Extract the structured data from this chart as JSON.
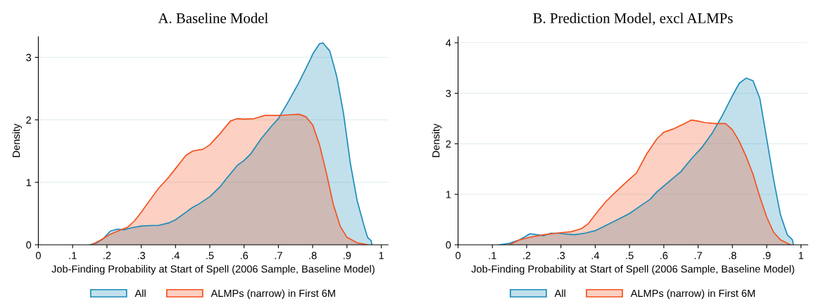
{
  "chart_data": [
    {
      "type": "area",
      "title": "A. Baseline Model",
      "xlabel": "Job-Finding Probability at Start of Spell (2006 Sample, Baseline Model)",
      "ylabel": "Density",
      "xlim": [
        0,
        1.02
      ],
      "ylim": [
        0,
        3.33
      ],
      "xticks": [
        0,
        {
          "value": 0.1,
          "label": ".1"
        },
        {
          "value": 0.2,
          "label": ".2"
        },
        {
          "value": 0.3,
          "label": ".3"
        },
        {
          "value": 0.4,
          "label": ".4"
        },
        {
          "value": 0.5,
          "label": ".5"
        },
        {
          "value": 0.6,
          "label": ".6"
        },
        {
          "value": 0.7,
          "label": ".7"
        },
        {
          "value": 0.8,
          "label": ".8"
        },
        {
          "value": 0.9,
          "label": ".9"
        },
        1
      ],
      "yticks": [
        0,
        1,
        2,
        3
      ],
      "grid": "y",
      "legend": "bottom",
      "series": [
        {
          "name": "All",
          "color": "#1a8bb8",
          "x": [
            0.15,
            0.17,
            0.19,
            0.21,
            0.23,
            0.25,
            0.27,
            0.3,
            0.33,
            0.35,
            0.38,
            0.4,
            0.43,
            0.45,
            0.47,
            0.5,
            0.53,
            0.55,
            0.58,
            0.6,
            0.62,
            0.65,
            0.68,
            0.7,
            0.73,
            0.76,
            0.79,
            0.8,
            0.82,
            0.83,
            0.85,
            0.87,
            0.89,
            0.91,
            0.93,
            0.95,
            0.96,
            0.97,
            0.973
          ],
          "values": [
            0,
            0.03,
            0.1,
            0.22,
            0.25,
            0.24,
            0.27,
            0.3,
            0.31,
            0.31,
            0.35,
            0.4,
            0.52,
            0.6,
            0.66,
            0.77,
            0.93,
            1.07,
            1.27,
            1.35,
            1.46,
            1.7,
            1.9,
            2.02,
            2.3,
            2.6,
            2.93,
            3.05,
            3.22,
            3.23,
            3.1,
            2.7,
            2.1,
            1.3,
            0.7,
            0.3,
            0.12,
            0.07,
            0
          ]
        },
        {
          "name": "ALMPs (narrow) in First 6M",
          "color": "#f4511e",
          "x": [
            0.155,
            0.18,
            0.21,
            0.24,
            0.26,
            0.28,
            0.3,
            0.33,
            0.35,
            0.38,
            0.4,
            0.43,
            0.45,
            0.48,
            0.5,
            0.53,
            0.56,
            0.58,
            0.6,
            0.63,
            0.66,
            0.7,
            0.73,
            0.76,
            0.78,
            0.8,
            0.82,
            0.84,
            0.86,
            0.88,
            0.9,
            0.93,
            0.96
          ],
          "values": [
            0,
            0.07,
            0.17,
            0.24,
            0.28,
            0.38,
            0.52,
            0.75,
            0.9,
            1.08,
            1.22,
            1.43,
            1.5,
            1.53,
            1.6,
            1.78,
            1.98,
            2.02,
            2.01,
            2.02,
            2.07,
            2.07,
            2.08,
            2.09,
            2.05,
            1.92,
            1.6,
            1.15,
            0.65,
            0.3,
            0.12,
            0.03,
            0
          ]
        }
      ]
    },
    {
      "type": "area",
      "title": "B. Prediction Model, excl ALMPs",
      "xlabel": "Job-Finding Probability at Start of Spell (2006 Sample, Baseline Model)",
      "ylabel": "Density",
      "xlim": [
        0,
        1.02
      ],
      "ylim": [
        0,
        4.12
      ],
      "xticks": [
        0,
        {
          "value": 0.1,
          "label": ".1"
        },
        {
          "value": 0.2,
          "label": ".2"
        },
        {
          "value": 0.3,
          "label": ".3"
        },
        {
          "value": 0.4,
          "label": ".4"
        },
        {
          "value": 0.5,
          "label": ".5"
        },
        {
          "value": 0.6,
          "label": ".6"
        },
        {
          "value": 0.7,
          "label": ".7"
        },
        {
          "value": 0.8,
          "label": ".8"
        },
        {
          "value": 0.9,
          "label": ".9"
        },
        1
      ],
      "yticks": [
        0,
        1,
        2,
        3,
        4
      ],
      "grid": "y",
      "legend": "bottom",
      "series": [
        {
          "name": "All",
          "color": "#1a8bb8",
          "x": [
            0.12,
            0.15,
            0.18,
            0.21,
            0.23,
            0.25,
            0.27,
            0.29,
            0.32,
            0.34,
            0.37,
            0.4,
            0.43,
            0.46,
            0.5,
            0.53,
            0.56,
            0.58,
            0.62,
            0.65,
            0.68,
            0.71,
            0.74,
            0.77,
            0.8,
            0.82,
            0.84,
            0.86,
            0.88,
            0.9,
            0.92,
            0.94,
            0.96,
            0.975,
            0.978
          ],
          "values": [
            0,
            0.03,
            0.1,
            0.22,
            0.2,
            0.18,
            0.23,
            0.23,
            0.21,
            0.2,
            0.23,
            0.28,
            0.38,
            0.48,
            0.62,
            0.76,
            0.9,
            1.05,
            1.28,
            1.45,
            1.7,
            1.92,
            2.2,
            2.55,
            2.95,
            3.2,
            3.3,
            3.25,
            2.9,
            2.1,
            1.3,
            0.6,
            0.2,
            0.1,
            0
          ]
        },
        {
          "name": "ALMPs (narrow) in First 6M",
          "color": "#f4511e",
          "x": [
            0.15,
            0.18,
            0.21,
            0.25,
            0.3,
            0.33,
            0.36,
            0.38,
            0.4,
            0.43,
            0.46,
            0.5,
            0.52,
            0.55,
            0.58,
            0.6,
            0.63,
            0.66,
            0.68,
            0.7,
            0.72,
            0.75,
            0.78,
            0.8,
            0.82,
            0.84,
            0.86,
            0.88,
            0.9,
            0.92,
            0.94,
            0.96,
            0.97
          ],
          "values": [
            0,
            0.1,
            0.15,
            0.2,
            0.24,
            0.26,
            0.32,
            0.42,
            0.6,
            0.85,
            1.05,
            1.3,
            1.42,
            1.8,
            2.1,
            2.23,
            2.3,
            2.4,
            2.47,
            2.45,
            2.42,
            2.4,
            2.4,
            2.28,
            2.05,
            1.75,
            1.4,
            0.95,
            0.55,
            0.25,
            0.1,
            0.03,
            0
          ]
        }
      ]
    }
  ]
}
